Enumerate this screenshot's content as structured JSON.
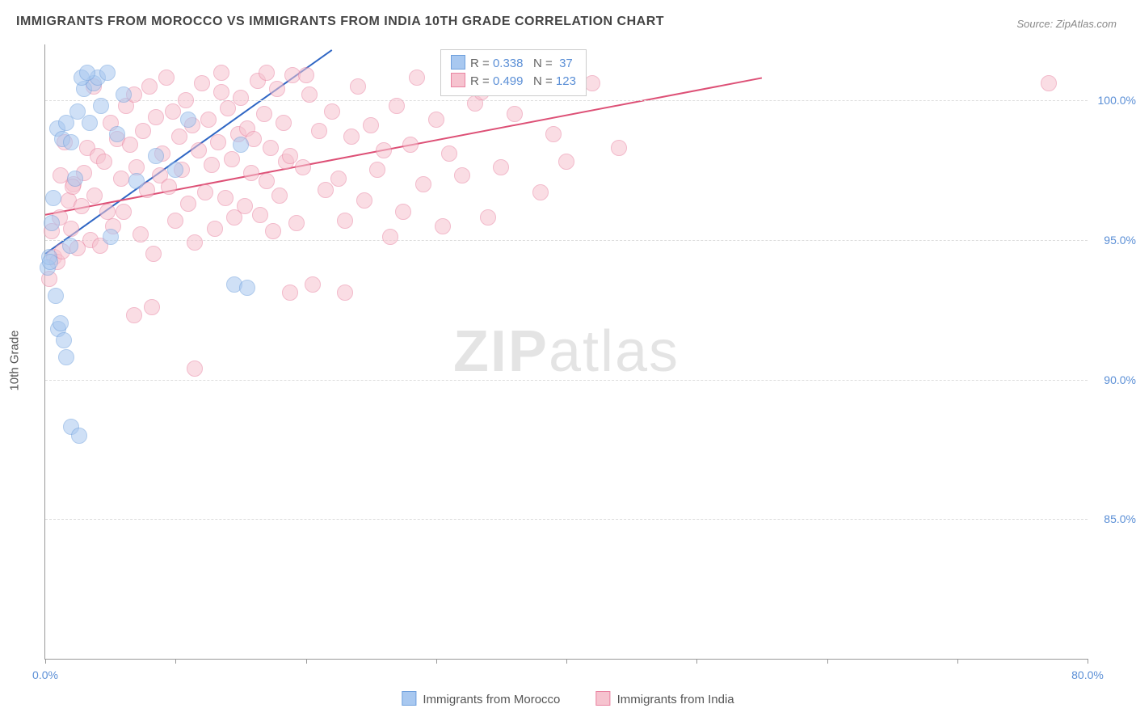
{
  "title": "IMMIGRANTS FROM MOROCCO VS IMMIGRANTS FROM INDIA 10TH GRADE CORRELATION CHART",
  "source_prefix": "Source: ",
  "source_name": "ZipAtlas.com",
  "ylabel": "10th Grade",
  "watermark_bold": "ZIP",
  "watermark_light": "atlas",
  "chart": {
    "type": "scatter",
    "background_color": "#ffffff",
    "grid_color": "#dddddd",
    "axis_color": "#999999",
    "xlim": [
      0,
      80
    ],
    "ylim": [
      80,
      102
    ],
    "ytick_values": [
      85,
      90,
      95,
      100
    ],
    "ytick_labels": [
      "85.0%",
      "90.0%",
      "95.0%",
      "100.0%"
    ],
    "xtick_values": [
      0,
      10,
      20,
      30,
      40,
      50,
      60,
      70,
      80
    ],
    "xtick_label_map": {
      "0": "0.0%",
      "80": "80.0%"
    },
    "marker_radius": 9,
    "marker_opacity": 0.55,
    "trend_line_width": 2,
    "axis_label_color": "#5b8fd6",
    "axis_label_fontsize": 14,
    "title_color": "#444444",
    "title_fontsize": 16
  },
  "series": [
    {
      "key": "morocco",
      "label": "Immigrants from Morocco",
      "fill": "#a8c8f0",
      "stroke": "#6fa0dd",
      "line_color": "#2f66c4",
      "R": "0.338",
      "N": "37",
      "trend": {
        "x1": 0,
        "y1": 94.5,
        "x2": 22,
        "y2": 101.8
      },
      "points": [
        [
          0.2,
          94.0
        ],
        [
          0.3,
          94.4
        ],
        [
          0.4,
          94.2
        ],
        [
          0.5,
          95.6
        ],
        [
          0.6,
          96.5
        ],
        [
          0.8,
          93.0
        ],
        [
          1.0,
          91.8
        ],
        [
          1.2,
          92.0
        ],
        [
          1.4,
          91.4
        ],
        [
          1.6,
          90.8
        ],
        [
          1.9,
          94.8
        ],
        [
          2.0,
          88.3
        ],
        [
          2.6,
          88.0
        ],
        [
          0.9,
          99.0
        ],
        [
          1.3,
          98.6
        ],
        [
          1.6,
          99.2
        ],
        [
          2.0,
          98.5
        ],
        [
          2.3,
          97.2
        ],
        [
          2.5,
          99.6
        ],
        [
          3.0,
          100.4
        ],
        [
          3.4,
          99.2
        ],
        [
          3.7,
          100.6
        ],
        [
          4.0,
          100.8
        ],
        [
          4.3,
          99.8
        ],
        [
          4.8,
          101.0
        ],
        [
          5.0,
          95.1
        ],
        [
          5.5,
          98.8
        ],
        [
          6.0,
          100.2
        ],
        [
          7.0,
          97.1
        ],
        [
          8.5,
          98.0
        ],
        [
          10.0,
          97.5
        ],
        [
          11.0,
          99.3
        ],
        [
          14.5,
          93.4
        ],
        [
          15.0,
          98.4
        ],
        [
          15.5,
          93.3
        ],
        [
          2.8,
          100.8
        ],
        [
          3.2,
          101.0
        ]
      ]
    },
    {
      "key": "india",
      "label": "Immigrants from India",
      "fill": "#f6c3cf",
      "stroke": "#e983a1",
      "line_color": "#dd5076",
      "R": "0.499",
      "N": "123",
      "trend": {
        "x1": 0,
        "y1": 95.9,
        "x2": 55,
        "y2": 100.8
      },
      "points": [
        [
          0.3,
          93.6
        ],
        [
          0.5,
          95.3
        ],
        [
          0.7,
          94.4
        ],
        [
          0.9,
          94.2
        ],
        [
          1.1,
          95.8
        ],
        [
          1.3,
          94.6
        ],
        [
          1.5,
          98.5
        ],
        [
          1.8,
          96.4
        ],
        [
          2.0,
          95.4
        ],
        [
          2.2,
          97.0
        ],
        [
          2.5,
          94.7
        ],
        [
          2.8,
          96.2
        ],
        [
          3.0,
          97.4
        ],
        [
          3.2,
          98.3
        ],
        [
          3.5,
          95.0
        ],
        [
          3.8,
          96.6
        ],
        [
          4.0,
          98.0
        ],
        [
          4.2,
          94.8
        ],
        [
          4.5,
          97.8
        ],
        [
          4.8,
          96.0
        ],
        [
          5.0,
          99.2
        ],
        [
          5.2,
          95.5
        ],
        [
          5.5,
          98.6
        ],
        [
          5.8,
          97.2
        ],
        [
          6.0,
          96.0
        ],
        [
          6.2,
          99.8
        ],
        [
          6.5,
          98.4
        ],
        [
          6.8,
          100.2
        ],
        [
          7.0,
          97.6
        ],
        [
          7.3,
          95.2
        ],
        [
          7.5,
          98.9
        ],
        [
          7.8,
          96.8
        ],
        [
          8.0,
          100.5
        ],
        [
          8.3,
          94.5
        ],
        [
          8.5,
          99.4
        ],
        [
          8.8,
          97.3
        ],
        [
          9.0,
          98.1
        ],
        [
          9.3,
          100.8
        ],
        [
          9.5,
          96.9
        ],
        [
          9.8,
          99.6
        ],
        [
          10.0,
          95.7
        ],
        [
          10.3,
          98.7
        ],
        [
          10.5,
          97.5
        ],
        [
          10.8,
          100.0
        ],
        [
          11.0,
          96.3
        ],
        [
          11.3,
          99.1
        ],
        [
          11.5,
          94.9
        ],
        [
          11.8,
          98.2
        ],
        [
          12.0,
          100.6
        ],
        [
          12.3,
          96.7
        ],
        [
          12.5,
          99.3
        ],
        [
          12.8,
          97.7
        ],
        [
          13.0,
          95.4
        ],
        [
          13.3,
          98.5
        ],
        [
          13.5,
          100.3
        ],
        [
          13.8,
          96.5
        ],
        [
          14.0,
          99.7
        ],
        [
          14.3,
          97.9
        ],
        [
          14.5,
          95.8
        ],
        [
          14.8,
          98.8
        ],
        [
          15.0,
          100.1
        ],
        [
          15.3,
          96.2
        ],
        [
          15.5,
          99.0
        ],
        [
          15.8,
          97.4
        ],
        [
          16.0,
          98.6
        ],
        [
          16.3,
          100.7
        ],
        [
          16.5,
          95.9
        ],
        [
          16.8,
          99.5
        ],
        [
          17.0,
          97.1
        ],
        [
          17.3,
          98.3
        ],
        [
          17.5,
          95.3
        ],
        [
          17.8,
          100.4
        ],
        [
          18.0,
          96.6
        ],
        [
          18.3,
          99.2
        ],
        [
          18.5,
          97.8
        ],
        [
          18.8,
          98.0
        ],
        [
          19.0,
          100.9
        ],
        [
          19.3,
          95.6
        ],
        [
          19.8,
          97.6
        ],
        [
          20.3,
          100.2
        ],
        [
          20.5,
          93.4
        ],
        [
          21.0,
          98.9
        ],
        [
          21.5,
          96.8
        ],
        [
          22.0,
          99.6
        ],
        [
          22.5,
          97.2
        ],
        [
          23.0,
          95.7
        ],
        [
          23.5,
          98.7
        ],
        [
          24.0,
          100.5
        ],
        [
          24.5,
          96.4
        ],
        [
          25.0,
          99.1
        ],
        [
          25.5,
          97.5
        ],
        [
          26.0,
          98.2
        ],
        [
          26.5,
          95.1
        ],
        [
          27.0,
          99.8
        ],
        [
          27.5,
          96.0
        ],
        [
          28.0,
          98.4
        ],
        [
          28.5,
          100.8
        ],
        [
          29.0,
          97.0
        ],
        [
          30.0,
          99.3
        ],
        [
          30.5,
          95.5
        ],
        [
          31.0,
          98.1
        ],
        [
          32.0,
          97.3
        ],
        [
          33.0,
          99.9
        ],
        [
          33.5,
          100.3
        ],
        [
          34.0,
          95.8
        ],
        [
          35.0,
          97.6
        ],
        [
          36.0,
          99.5
        ],
        [
          38.0,
          96.7
        ],
        [
          39.0,
          98.8
        ],
        [
          40.0,
          97.8
        ],
        [
          42.0,
          100.6
        ],
        [
          44.0,
          98.3
        ],
        [
          6.8,
          92.3
        ],
        [
          8.2,
          92.6
        ],
        [
          11.5,
          90.4
        ],
        [
          18.8,
          93.1
        ],
        [
          23.0,
          93.1
        ],
        [
          77.0,
          100.6
        ],
        [
          13.5,
          101.0
        ],
        [
          17.0,
          101.0
        ],
        [
          20.0,
          100.9
        ],
        [
          2.1,
          96.9
        ],
        [
          3.7,
          100.5
        ],
        [
          1.2,
          97.3
        ]
      ]
    }
  ],
  "stats_legend": {
    "R_label": "R =",
    "N_label": "N ="
  },
  "bottom_legend_labels": [
    "Immigrants from Morocco",
    "Immigrants from India"
  ]
}
